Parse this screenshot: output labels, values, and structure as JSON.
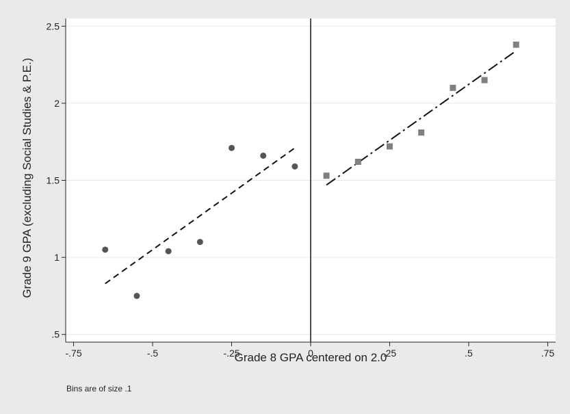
{
  "chart_data": {
    "type": "scatter",
    "title": "",
    "xlabel": "Grade 8 GPA centered on 2.0",
    "ylabel": "Grade 9 GPA (excluding Social Studies & P.E.)",
    "note": "Bins are of size .1",
    "xlim": [
      -0.775,
      0.775
    ],
    "ylim": [
      0.45,
      2.55
    ],
    "x_ticks": [
      -0.75,
      -0.5,
      -0.25,
      0,
      0.25,
      0.5,
      0.75
    ],
    "x_tick_labels": [
      "-.75",
      "-.5",
      "-.25",
      "0",
      ".25",
      ".5",
      ".75"
    ],
    "y_ticks": [
      0.5,
      1,
      1.5,
      2,
      2.5
    ],
    "y_tick_labels": [
      ".5",
      "1",
      "1.5",
      "2",
      "2.5"
    ],
    "grid": "horizontal",
    "cutoff_x": 0,
    "series": [
      {
        "marker": "circle",
        "color": "#555555",
        "x": [
          -0.65,
          -0.55,
          -0.45,
          -0.35,
          -0.25,
          -0.15,
          -0.05
        ],
        "y": [
          1.05,
          0.75,
          1.04,
          1.1,
          1.71,
          1.66,
          1.59
        ]
      },
      {
        "marker": "square",
        "color": "#808080",
        "x": [
          0.05,
          0.15,
          0.25,
          0.35,
          0.45,
          0.55,
          0.65
        ],
        "y": [
          1.53,
          1.62,
          1.72,
          1.81,
          2.1,
          2.15,
          2.38
        ]
      }
    ],
    "fit_lines": [
      {
        "style": "dashed",
        "x": [
          -0.65,
          -0.05
        ],
        "y": [
          0.83,
          1.71
        ]
      },
      {
        "style": "dash-dot",
        "x": [
          0.05,
          0.65
        ],
        "y": [
          1.47,
          2.34
        ]
      }
    ]
  }
}
